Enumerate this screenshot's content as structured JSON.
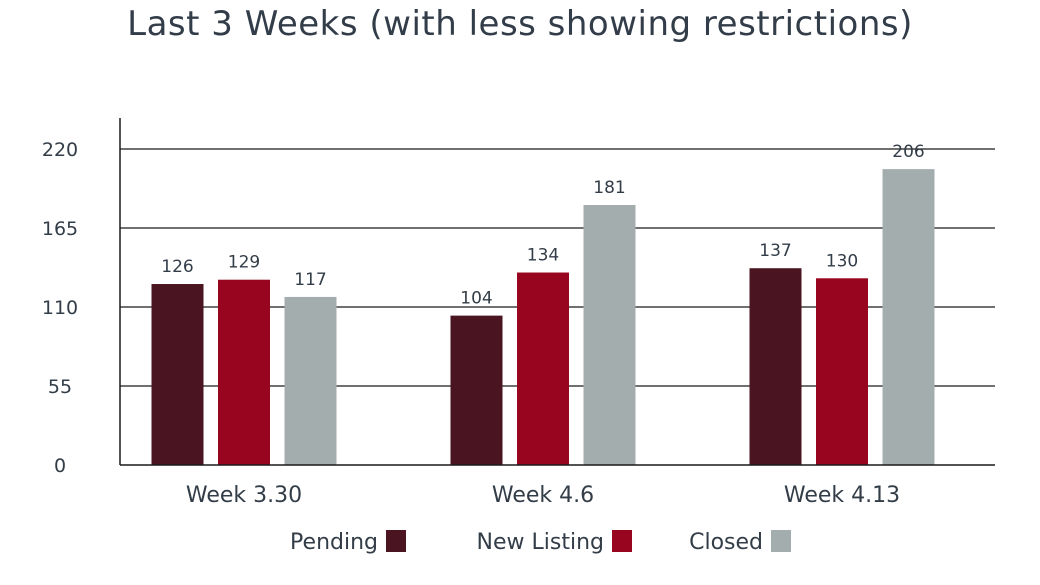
{
  "chart_data": {
    "type": "bar",
    "title": "Last 3 Weeks (with less showing restrictions)",
    "categories": [
      "Week 3.30",
      "Week 4.6",
      "Week 4.13"
    ],
    "series": [
      {
        "name": "Pending",
        "color": "#4a1520",
        "values": [
          126,
          104,
          137
        ]
      },
      {
        "name": "New Listing",
        "color": "#97061e",
        "values": [
          129,
          134,
          130
        ]
      },
      {
        "name": "Closed",
        "color": "#a4adad",
        "values": [
          117,
          181,
          206
        ]
      }
    ],
    "yticks": [
      "0",
      "55",
      "110",
      "165",
      "220"
    ],
    "ylim": [
      0,
      240
    ],
    "grid": true,
    "legend_position": "bottom"
  }
}
